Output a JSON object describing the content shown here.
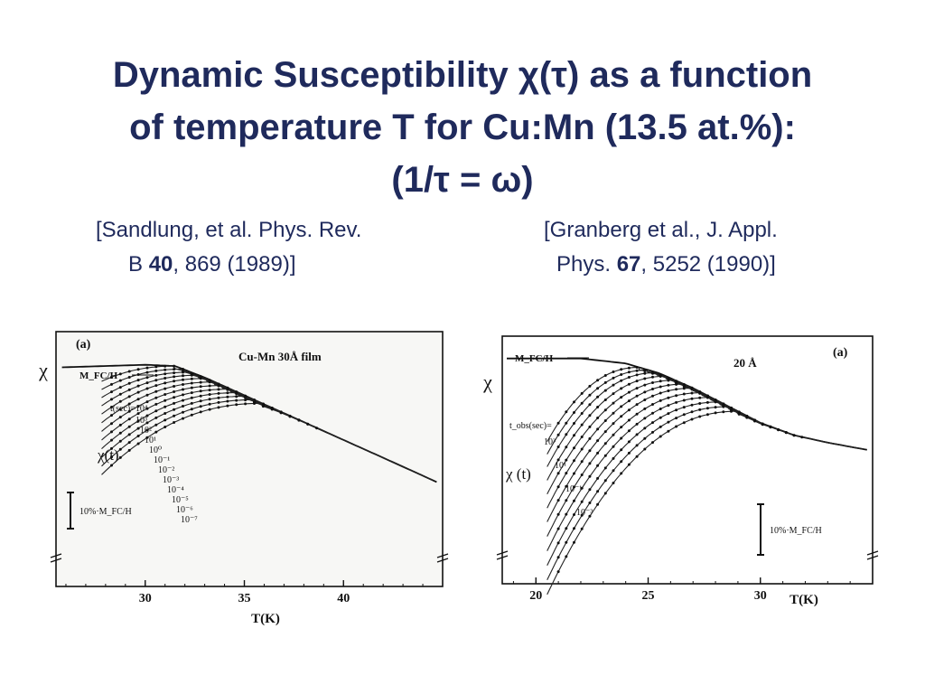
{
  "slide": {
    "title_line1": "Dynamic Susceptibility χ(τ) as a function",
    "title_line2": "of temperature T for Cu:Mn (13.5 at.%):",
    "title_line3": "(1/τ = ω)",
    "cite_left": {
      "line1": "[Sandlung, et al. Phys. Rev.",
      "line2_pre": "B ",
      "line2_bold": "40",
      "line2_post": ", 869 (1989)]"
    },
    "cite_right": {
      "line1": "[Granberg et al., J. Appl.",
      "line2_pre": "Phys.  ",
      "line2_bold": "67",
      "line2_post": ", 5252 (1990)]"
    }
  },
  "chart_data": [
    {
      "type": "line",
      "panel_label": "(a)",
      "annotation": "Cu-Mn 30Å film",
      "ylabel": "χ",
      "xlabel": "T(K)",
      "x_ticks": [
        "30",
        "35",
        "40"
      ],
      "xlim": [
        25.5,
        45
      ],
      "envelope_label": "M_FC/H",
      "t_label": "t(sec)=10⁴",
      "chi_t_label": "χ(t)",
      "scale_bar_label": "10%·M_FC/H",
      "t_values": [
        "10³",
        "10²",
        "10¹",
        "10⁰",
        "10⁻¹",
        "10⁻²",
        "10⁻³",
        "10⁻⁴",
        "10⁻⁵",
        "10⁻⁶",
        "10⁻⁷"
      ],
      "fc_curve": {
        "x": [
          25.8,
          30,
          31.5,
          33,
          35,
          37,
          39,
          41,
          43,
          44.7
        ],
        "y": [
          0.86,
          0.87,
          0.865,
          0.82,
          0.75,
          0.68,
          0.61,
          0.54,
          0.47,
          0.41
        ]
      },
      "series_peaks_x": [
        31.5,
        31.9,
        32.3,
        32.7,
        33.1,
        33.5,
        33.9,
        34.3,
        34.7,
        35.1,
        35.5,
        35.9
      ],
      "series_start_offsets": [
        0.06,
        0.08,
        0.1,
        0.12,
        0.14,
        0.16,
        0.18,
        0.2,
        0.22,
        0.24,
        0.26,
        0.28
      ]
    },
    {
      "type": "line",
      "panel_label": "(a)",
      "annotation": "20 Å",
      "ylabel": "χ",
      "xlabel": "T(K)",
      "x_ticks": [
        "20",
        "25",
        "30"
      ],
      "xlim": [
        18.5,
        35
      ],
      "envelope_label": "M_FC/H",
      "t_label": "t_obs(sec)=",
      "chi_t_label": "χ (t)",
      "scale_bar_label": "10%·M_FC/H",
      "t_values": [
        "10³",
        "10¹",
        "10⁻¹",
        "10⁻³"
      ],
      "fc_curve": {
        "x": [
          18.7,
          22,
          24,
          25.5,
          27,
          28.5,
          30,
          31.5,
          33,
          34.8
        ],
        "y": [
          0.91,
          0.91,
          0.89,
          0.85,
          0.79,
          0.72,
          0.65,
          0.6,
          0.57,
          0.54
        ]
      },
      "series_peaks_x": [
        24.6,
        25.0,
        25.4,
        25.8,
        26.2,
        26.6,
        27.0,
        27.4,
        27.8,
        28.2,
        28.6,
        29.0
      ],
      "series_start_offsets": [
        0.3,
        0.34,
        0.38,
        0.42,
        0.46,
        0.5,
        0.54,
        0.58,
        0.62,
        0.66,
        0.7,
        0.74
      ]
    }
  ]
}
